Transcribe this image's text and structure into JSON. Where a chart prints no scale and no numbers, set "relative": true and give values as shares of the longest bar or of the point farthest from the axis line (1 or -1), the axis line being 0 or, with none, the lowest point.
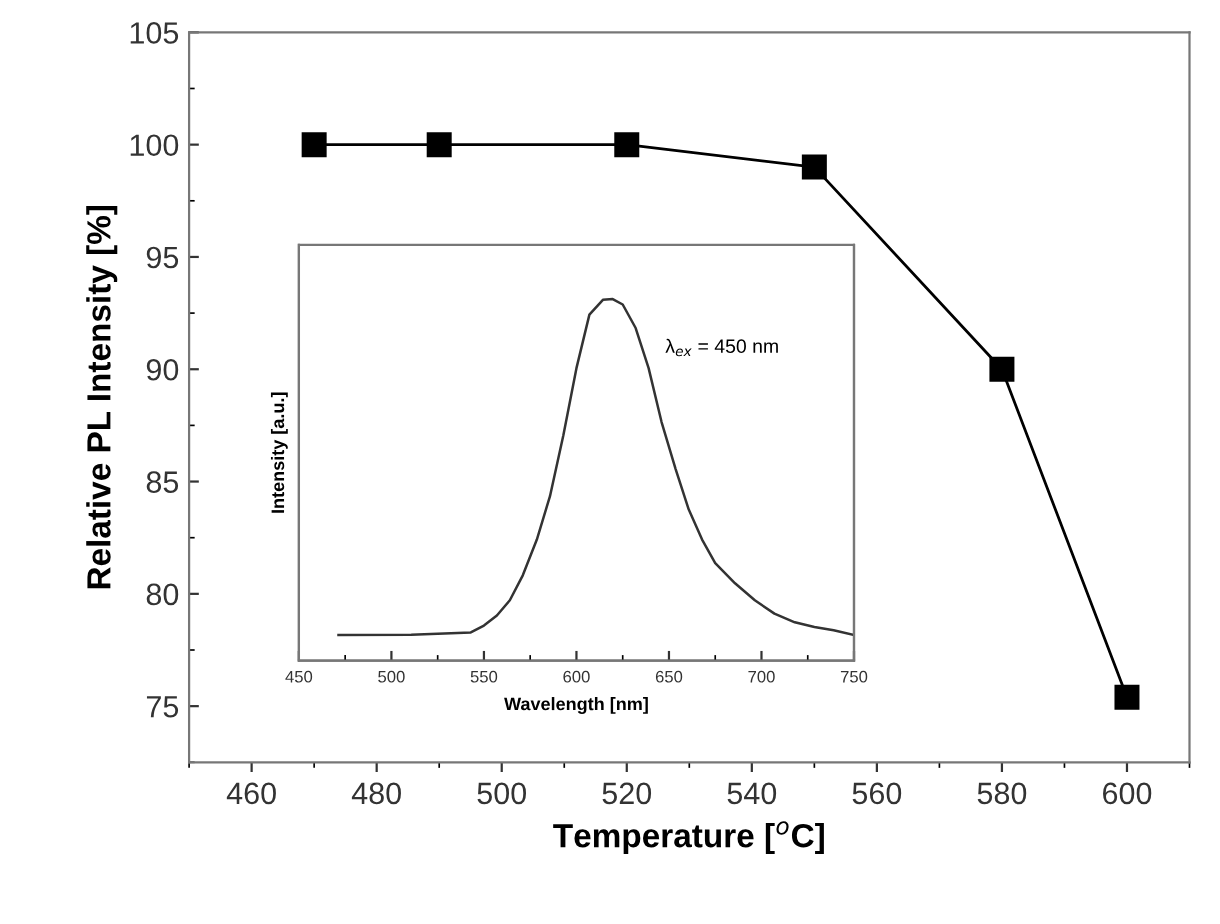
{
  "chart_data": [
    {
      "type": "line",
      "xlabel": "Temperature [$^{o}$C]",
      "ylabel": "Relative PL Intensity [%]",
      "x": [
        470,
        490,
        520,
        550,
        580,
        600
      ],
      "series": [
        {
          "color": "#000000",
          "values": [
            100,
            100,
            100,
            99,
            90,
            75.4
          ]
        }
      ],
      "marker": "square",
      "line_style": "solid",
      "grid": false,
      "legend": false,
      "xlim": [
        450,
        610
      ],
      "xticks": [
        460,
        480,
        500,
        520,
        540,
        560,
        580,
        600
      ],
      "ylim": [
        72.5,
        105
      ],
      "yticks": [
        75,
        80,
        85,
        90,
        95,
        100,
        105
      ]
    },
    {
      "type": "line",
      "relative": true,
      "xlabel": "Wavelength [nm]",
      "ylabel": "Intensity [a.u.]",
      "annotations": [
        "λ$_{ex}$ = 450 nm"
      ],
      "x": [
        471.4,
        510.7,
        542.9,
        550,
        557,
        564,
        571,
        578.6,
        585.7,
        592.9,
        600,
        607,
        614.3,
        619.6,
        625,
        632,
        639,
        646,
        653.6,
        660.7,
        667.9,
        675,
        685.7,
        696.4,
        707,
        718,
        728.6,
        739,
        750
      ],
      "series": [
        {
          "color": "#333333",
          "values": [
            0.071,
            0.072,
            0.078,
            0.097,
            0.125,
            0.167,
            0.236,
            0.335,
            0.455,
            0.623,
            0.809,
            0.957,
            0.998,
            1.0,
            0.985,
            0.92,
            0.809,
            0.66,
            0.53,
            0.418,
            0.335,
            0.27,
            0.214,
            0.167,
            0.13,
            0.106,
            0.093,
            0.084,
            0.071
          ]
        }
      ],
      "marker": "none",
      "line_style": "solid",
      "grid": false,
      "legend": false,
      "tick_labels": "x",
      "xlim": [
        450,
        750
      ],
      "xticks": [
        450,
        500,
        550,
        600,
        650,
        700,
        750
      ]
    }
  ]
}
